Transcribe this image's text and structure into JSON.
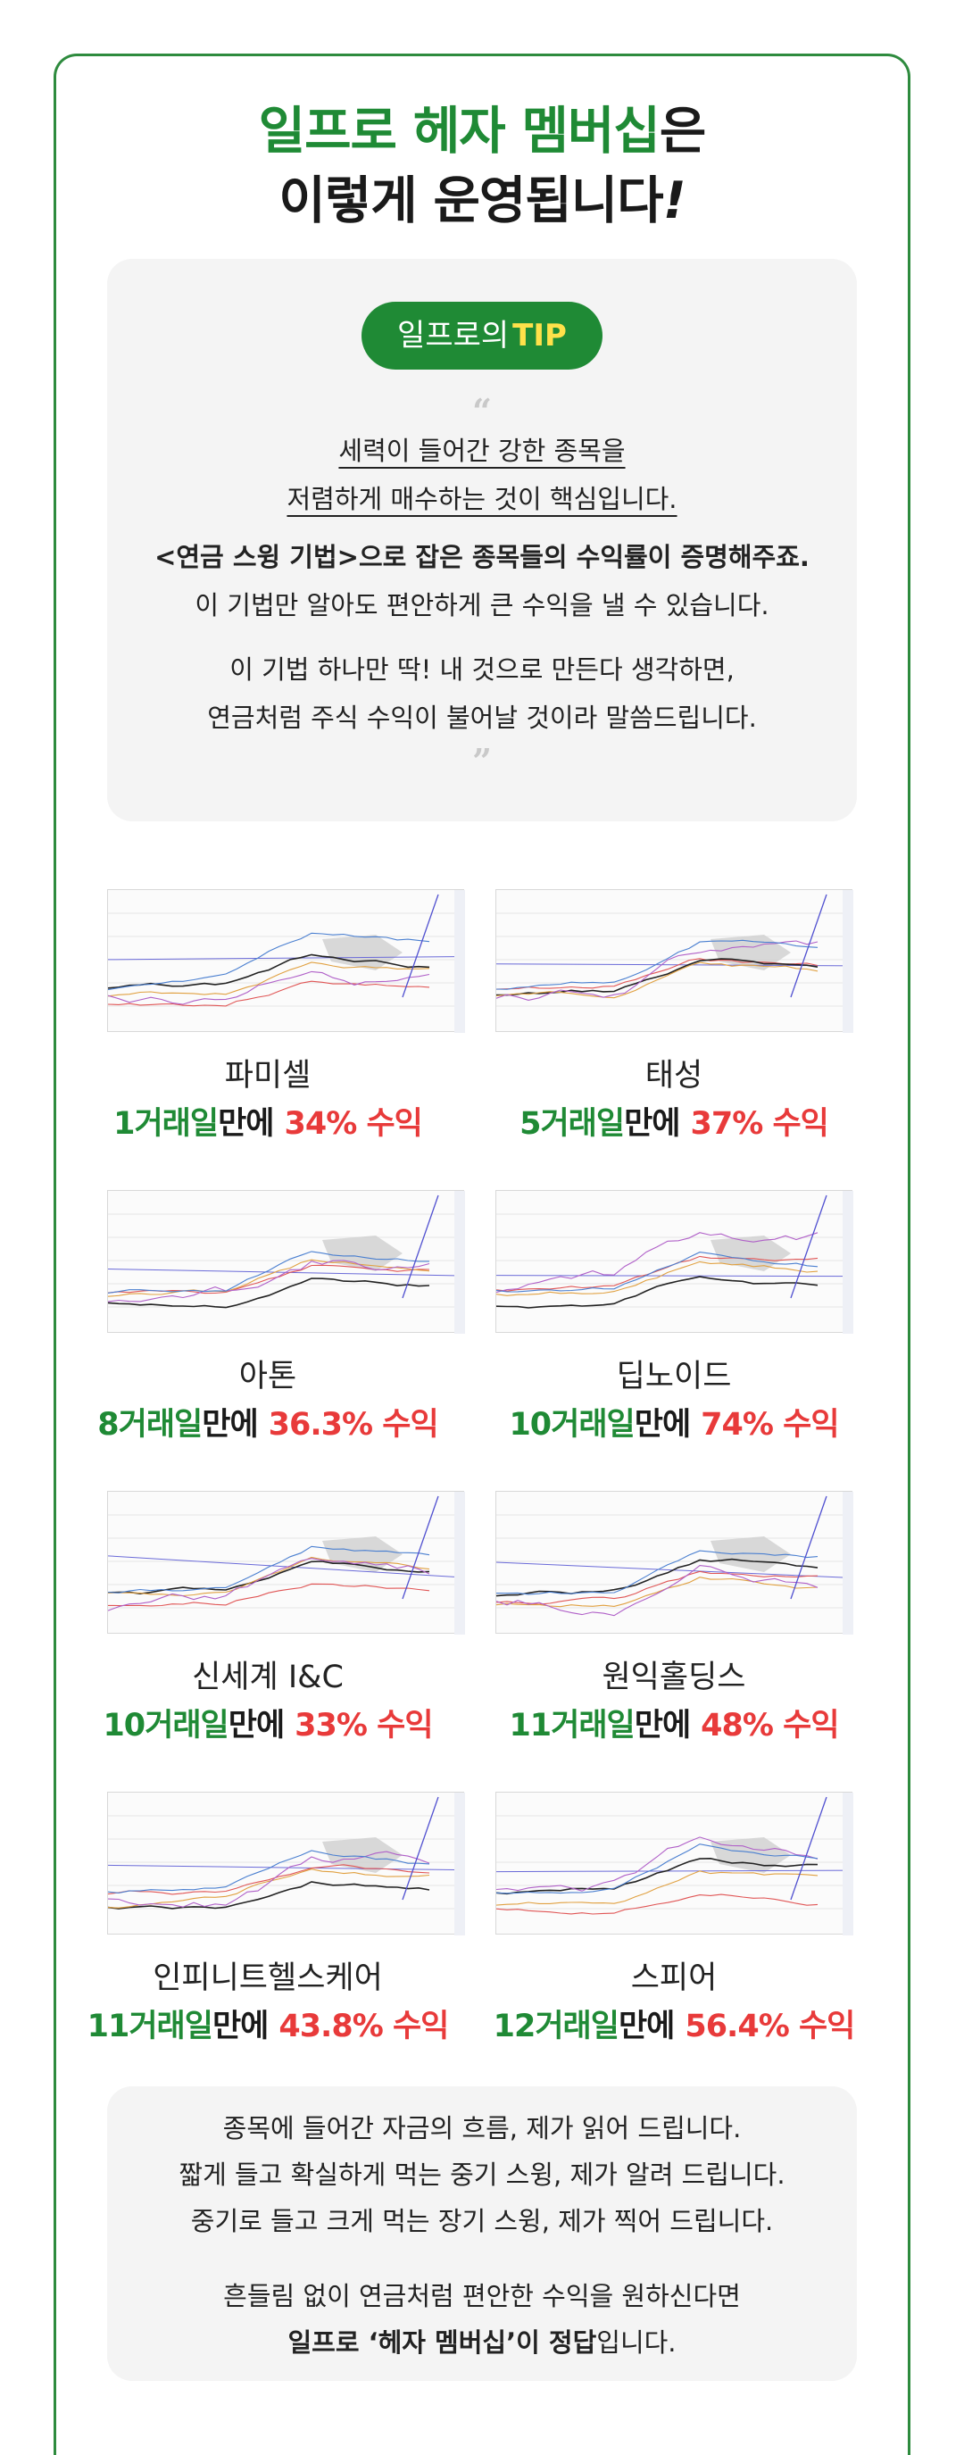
{
  "header": {
    "title_green": "일프로 헤자 멤버십",
    "title_suffix": "은",
    "title_line2": "이렇게 운영됩니다",
    "title_excl": "!"
  },
  "tip": {
    "pill_prefix": "일프로의",
    "pill_strong": "TIP",
    "open_quote": "“",
    "close_quote": "”",
    "lines_underlined": [
      "세력이 들어간 강한 종목을",
      "저렴하게 매수하는 것이 핵심입니다."
    ],
    "bold_line": "<연금 스윙 기법>으로 잡은 종목들의 수익률이 증명해주죠.",
    "line_after_bold": "이 기법만 알아도 편안하게 큰 수익을 낼 수 있습니다.",
    "closing_lines": [
      "이 기법 하나만 딱! 내 것으로 만든다 생각하면,",
      "연금처럼 주식 수익이 불어날 것이라 말씀드립니다."
    ]
  },
  "stocks": [
    {
      "name": "파미셀",
      "days": "1거래일",
      "mid": "만에",
      "pct": "34% 수익"
    },
    {
      "name": "태성",
      "days": "5거래일",
      "mid": "만에",
      "pct": "37% 수익"
    },
    {
      "name": "아톤",
      "days": "8거래일",
      "mid": "만에",
      "pct": "36.3% 수익"
    },
    {
      "name": "딥노이드",
      "days": "10거래일",
      "mid": "만에",
      "pct": "74% 수익"
    },
    {
      "name": "신세계 I&C",
      "days": "10거래일",
      "mid": "만에",
      "pct": "33% 수익"
    },
    {
      "name": "원익홀딩스",
      "days": "11거래일",
      "mid": "만에",
      "pct": "48% 수익"
    },
    {
      "name": "인피니트헬스케어",
      "days": "11거래일",
      "mid": "만에",
      "pct": "43.8% 수익"
    },
    {
      "name": "스피어",
      "days": "12거래일",
      "mid": "만에",
      "pct": "56.4% 수익"
    }
  ],
  "bottom": {
    "lines": [
      "종목에 들어간 자금의 흐름, 제가 읽어 드립니다.",
      "짧게 들고 확실하게 먹는 중기 스윙, 제가 알려 드립니다.",
      "중기로 들고 크게 먹는 장기 스윙, 제가 찍어 드립니다."
    ],
    "line4": "흔들림 없이 연금처럼 편안한 수익을 원하신다면",
    "line5_bold": "일프로 ‘헤자 멤버십’이 정답",
    "line5_suffix": "입니다."
  },
  "colors": {
    "brand_green": "#1f8a35",
    "highlight_yellow": "#ffe14a",
    "profit_red": "#e83a3a",
    "box_gray": "#f4f4f4"
  }
}
